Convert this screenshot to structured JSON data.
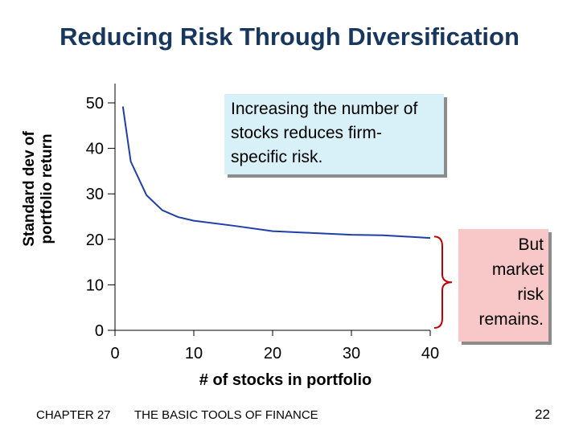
{
  "slide": {
    "title": "Reducing Risk Through Diversification",
    "callout_top": "Increasing the number of stocks reduces firm-specific risk.",
    "callout_right": "But market risk remains.",
    "footer_chapter": "CHAPTER 27",
    "footer_book": "THE BASIC TOOLS OF FINANCE",
    "page_number": "22"
  },
  "colors": {
    "curve": "#1f3ea8",
    "brace": "#c00000",
    "callout_top_bg": "#d8f0f8",
    "callout_right_bg": "#f8c8c8",
    "title": "#17375e"
  },
  "chart_data": {
    "type": "line",
    "title": "",
    "xlabel": "# of stocks in portfolio",
    "ylabel": "Standard dev of portfolio return",
    "xlim": [
      0,
      40
    ],
    "ylim": [
      0,
      50
    ],
    "x_ticks": [
      0,
      10,
      20,
      30,
      40
    ],
    "y_ticks": [
      0,
      10,
      20,
      30,
      40,
      50
    ],
    "grid": false,
    "series": [
      {
        "name": "",
        "x": [
          1,
          2,
          4,
          6,
          8,
          10,
          15,
          20,
          25,
          30,
          34,
          40
        ],
        "y": [
          49.2,
          37.1,
          29.7,
          26.4,
          24.9,
          24.1,
          23.0,
          21.8,
          21.4,
          21.0,
          20.9,
          20.3
        ]
      }
    ]
  }
}
